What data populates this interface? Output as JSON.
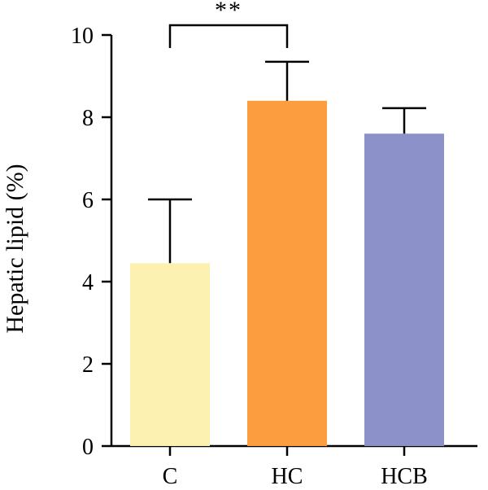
{
  "chart_data": {
    "type": "bar",
    "title": "",
    "xlabel": "",
    "ylabel": "Hepatic lipid (%)",
    "ylim": [
      0,
      10
    ],
    "yticks": [
      0,
      2,
      4,
      6,
      8,
      10
    ],
    "grid": false,
    "categories": [
      "C",
      "HC",
      "HCB"
    ],
    "values": [
      4.45,
      8.4,
      7.6
    ],
    "error_upper": [
      6.0,
      9.35,
      8.22
    ],
    "colors": [
      "#fdf1b2",
      "#fc9d3f",
      "#8c91c9"
    ],
    "annotations": [
      {
        "type": "significance-bracket",
        "from": "C",
        "to": "HC",
        "label": "**",
        "y": 10.25
      }
    ]
  }
}
